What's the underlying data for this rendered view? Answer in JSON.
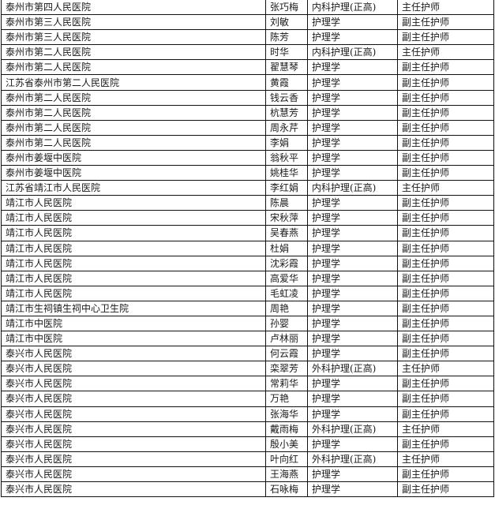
{
  "rows": [
    [
      "泰州市第四人民医院",
      "张巧梅",
      "内科护理(正高)",
      "主任护师"
    ],
    [
      "泰州市第三人民医院",
      "刘敏",
      "护理学",
      "副主任护师"
    ],
    [
      "泰州市第三人民医院",
      "陈芳",
      "护理学",
      "副主任护师"
    ],
    [
      "泰州市第二人民医院",
      "时华",
      "内科护理(正高)",
      "主任护师"
    ],
    [
      "泰州市第二人民医院",
      "翟慧琴",
      "护理学",
      "副主任护师"
    ],
    [
      "江苏省泰州市第二人民医院",
      "黄霞",
      "护理学",
      "副主任护师"
    ],
    [
      "泰州市第二人民医院",
      "钱云香",
      "护理学",
      "副主任护师"
    ],
    [
      "泰州市第二人民医院",
      "杭慧芳",
      "护理学",
      "副主任护师"
    ],
    [
      "泰州市第二人民医院",
      "周永芹",
      "护理学",
      "副主任护师"
    ],
    [
      "泰州市第二人民医院",
      "李娟",
      "护理学",
      "副主任护师"
    ],
    [
      "泰州市姜堰中医院",
      "翁秋平",
      "护理学",
      "副主任护师"
    ],
    [
      "泰州市姜堰中医院",
      "姚桂华",
      "护理学",
      "副主任护师"
    ],
    [
      "江苏省靖江市人民医院",
      "李红娟",
      "内科护理(正高)",
      "主任护师"
    ],
    [
      "靖江市人民医院",
      "陈晨",
      "护理学",
      "副主任护师"
    ],
    [
      "靖江市人民医院",
      "宋秋萍",
      "护理学",
      "副主任护师"
    ],
    [
      "靖江市人民医院",
      "吴春燕",
      "护理学",
      "副主任护师"
    ],
    [
      "靖江市人民医院",
      "杜娟",
      "护理学",
      "副主任护师"
    ],
    [
      "靖江市人民医院",
      "沈彩霞",
      "护理学",
      "副主任护师"
    ],
    [
      "靖江市人民医院",
      "高爱华",
      "护理学",
      "副主任护师"
    ],
    [
      "靖江市人民医院",
      "毛虹凌",
      "护理学",
      "副主任护师"
    ],
    [
      "靖江市生祠镇生祠中心卫生院",
      "周艳",
      "护理学",
      "副主任护师"
    ],
    [
      "靖江市中医院",
      "孙婴",
      "护理学",
      "副主任护师"
    ],
    [
      "靖江市中医院",
      "卢林丽",
      "护理学",
      "副主任护师"
    ],
    [
      "泰兴市人民医院",
      "何云霞",
      "护理学",
      "副主任护师"
    ],
    [
      "泰兴市人民医院",
      "栾翠芳",
      "外科护理(正高)",
      "主任护师"
    ],
    [
      "泰兴市人民医院",
      "常莉华",
      "护理学",
      "副主任护师"
    ],
    [
      "泰兴市人民医院",
      "万艳",
      "护理学",
      "副主任护师"
    ],
    [
      "泰兴市人民医院",
      "张海华",
      "护理学",
      "副主任护师"
    ],
    [
      "泰兴市人民医院",
      "戴雨梅",
      "外科护理(正高)",
      "主任护师"
    ],
    [
      "泰兴市人民医院",
      "殷小美",
      "护理学",
      "副主任护师"
    ],
    [
      "泰兴市人民医院",
      "叶向红",
      "外科护理(正高)",
      "主任护师"
    ],
    [
      "泰兴市人民医院",
      "王海燕",
      "护理学",
      "副主任护师"
    ],
    [
      "泰兴市人民医院",
      "石咏梅",
      "护理学",
      "副主任护师"
    ]
  ]
}
